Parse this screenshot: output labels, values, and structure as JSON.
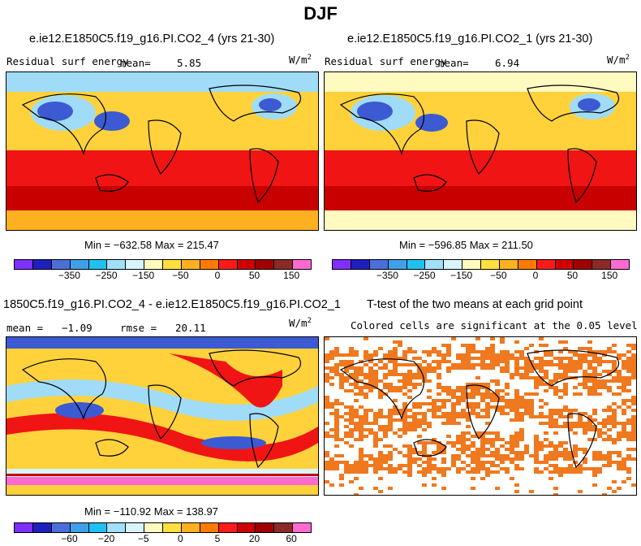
{
  "title": "DJF",
  "panels": [
    {
      "id": "p1",
      "title": "e.ie12.E1850C5.f19_g16.PI.CO2_4 (yrs 21-30)",
      "variable": "Residual surf energy",
      "mean_label": "mean=",
      "mean_value": "5.85",
      "units": "W/m",
      "units_exp": "2",
      "stats": "Min = −632.58 Max = 215.47"
    },
    {
      "id": "p2",
      "title": "e.ie12.E1850C5.f19_g16.PI.CO2_1 (yrs 21-30)",
      "variable": "Residual surf energy",
      "mean_label": "mean=",
      "mean_value": "6.94",
      "units": "W/m",
      "units_exp": "2",
      "stats": "Min = −596.85 Max = 211.50"
    },
    {
      "id": "p3",
      "title": "1850C5.f19_g16.PI.CO2_4 - e.ie12.E1850C5.f19_g16.PI.CO2_1",
      "mean_text": "mean =",
      "mean_value": "−1.09",
      "rmse_text": "rmse =",
      "rmse_value": "20.11",
      "units": "W/m",
      "units_exp": "2",
      "stats": "Min = −110.92 Max = 138.97"
    },
    {
      "id": "p4",
      "title": "T-test of the two means at each grid point",
      "subtitle": "Colored cells are significant at the 0.05 level"
    }
  ],
  "colorbar_top": {
    "colors": [
      "#7f2fff",
      "#1f1fbf",
      "#4a6fd8",
      "#3f9fe8",
      "#20c0f0",
      "#a0e0f8",
      "#d8f4ff",
      "#fffac0",
      "#ffe040",
      "#ffb020",
      "#ff7a00",
      "#ff1a1a",
      "#d00000",
      "#a00000",
      "#8c2a2a",
      "#ff6ad0"
    ],
    "ticks": [
      "−350",
      "−250",
      "−150",
      "−50",
      "0",
      "50",
      "150"
    ]
  },
  "colorbar_bottom": {
    "colors": [
      "#7f2fff",
      "#1f1fbf",
      "#4a6fd8",
      "#3f9fe8",
      "#20c0f0",
      "#a0e0f8",
      "#d8f4ff",
      "#fffac0",
      "#ffe040",
      "#ffb020",
      "#ff7a00",
      "#ff1a1a",
      "#d00000",
      "#a00000",
      "#8c2a2a",
      "#ff6ad0"
    ],
    "ticks": [
      "−60",
      "−20",
      "−5",
      "0",
      "5",
      "20",
      "60"
    ]
  },
  "colors": {
    "ocean_warm": "#ffd23c",
    "ocean_hot": "#f01414",
    "deep_red": "#c80000",
    "sea_ice": "#a0dcf8",
    "cold": "#3c5ad2",
    "significant": "#f0781e"
  }
}
